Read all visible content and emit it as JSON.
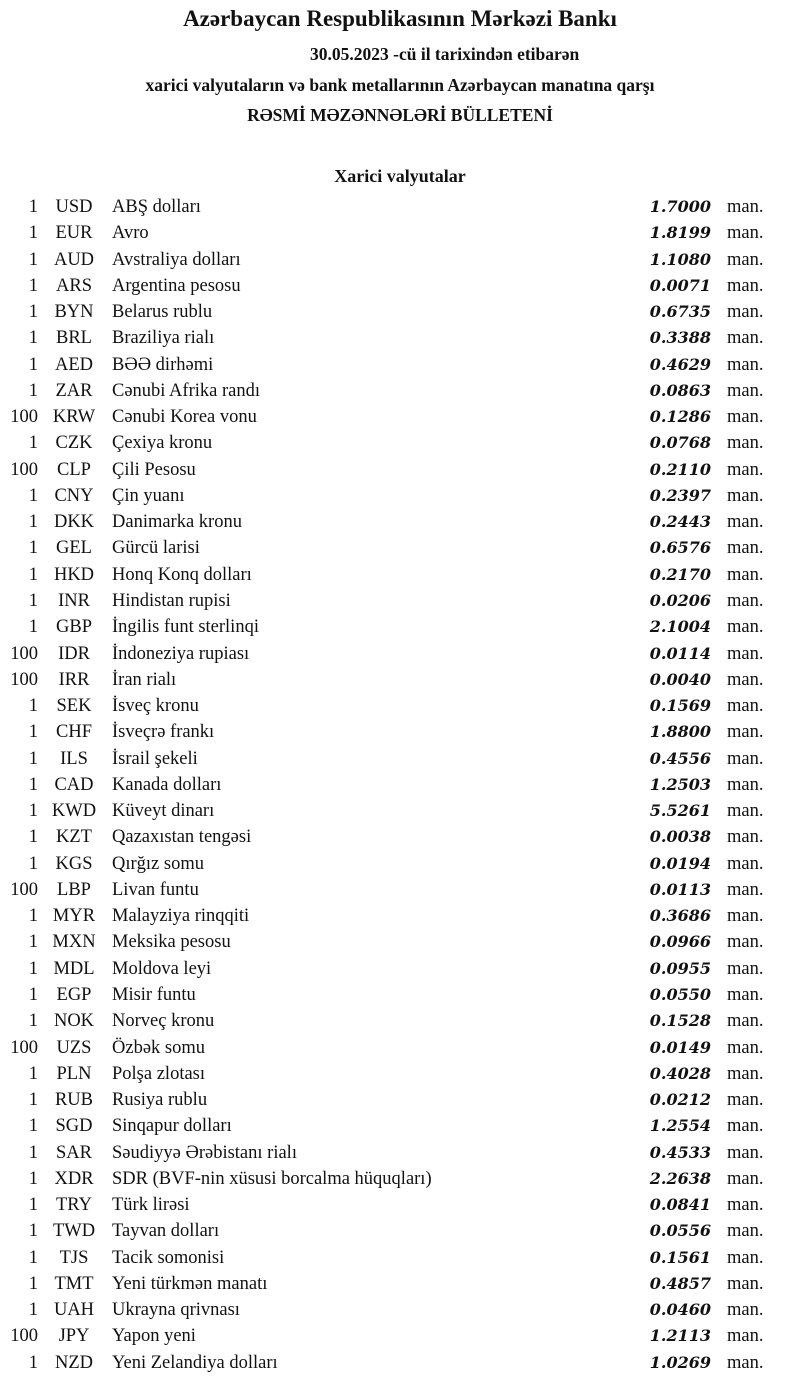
{
  "header": {
    "bank": "Azərbaycan Respublikasının Mərkəzi Bankı",
    "date_line": "30.05.2023 -cü il tarixindən etibarən",
    "subtitle": "xarici valyutaların və bank metallarının Azərbaycan manatına qarşı",
    "title": "RƏSMİ MƏZƏNNƏLƏRİ BÜLLETENİ",
    "section": "Xarici valyutalar"
  },
  "unit": "man.",
  "rates": [
    {
      "nominal": "1",
      "code": "USD",
      "name": "ABŞ dolları",
      "rate": "1.7000"
    },
    {
      "nominal": "1",
      "code": "EUR",
      "name": "Avro",
      "rate": "1.8199"
    },
    {
      "nominal": "1",
      "code": "AUD",
      "name": "Avstraliya dolları",
      "rate": "1.1080"
    },
    {
      "nominal": "1",
      "code": "ARS",
      "name": "Argentina pesosu",
      "rate": "0.0071"
    },
    {
      "nominal": "1",
      "code": "BYN",
      "name": "Belarus rublu",
      "rate": "0.6735"
    },
    {
      "nominal": "1",
      "code": "BRL",
      "name": "Braziliya rialı",
      "rate": "0.3388"
    },
    {
      "nominal": "1",
      "code": "AED",
      "name": "BƏƏ dirhəmi",
      "rate": "0.4629"
    },
    {
      "nominal": "1",
      "code": "ZAR",
      "name": "Cənubi Afrika randı",
      "rate": "0.0863"
    },
    {
      "nominal": "100",
      "code": "KRW",
      "name": "Cənubi Korea vonu",
      "rate": "0.1286"
    },
    {
      "nominal": "1",
      "code": "CZK",
      "name": "Çexiya kronu",
      "rate": "0.0768"
    },
    {
      "nominal": "100",
      "code": "CLP",
      "name": "Çili Pesosu",
      "rate": "0.2110"
    },
    {
      "nominal": "1",
      "code": "CNY",
      "name": "Çin yuanı",
      "rate": "0.2397"
    },
    {
      "nominal": "1",
      "code": "DKK",
      "name": "Danimarka kronu",
      "rate": "0.2443"
    },
    {
      "nominal": "1",
      "code": "GEL",
      "name": "Gürcü larisi",
      "rate": "0.6576"
    },
    {
      "nominal": "1",
      "code": "HKD",
      "name": "Honq Konq dolları",
      "rate": "0.2170"
    },
    {
      "nominal": "1",
      "code": "INR",
      "name": "Hindistan rupisi",
      "rate": "0.0206"
    },
    {
      "nominal": "1",
      "code": "GBP",
      "name": "İngilis funt sterlinqi",
      "rate": "2.1004"
    },
    {
      "nominal": "100",
      "code": "IDR",
      "name": "İndoneziya rupiası",
      "rate": "0.0114"
    },
    {
      "nominal": "100",
      "code": "IRR",
      "name": "İran rialı",
      "rate": "0.0040"
    },
    {
      "nominal": "1",
      "code": "SEK",
      "name": "İsveç kronu",
      "rate": "0.1569"
    },
    {
      "nominal": "1",
      "code": "CHF",
      "name": "İsveçrə frankı",
      "rate": "1.8800"
    },
    {
      "nominal": "1",
      "code": "ILS",
      "name": "İsrail şekeli",
      "rate": "0.4556"
    },
    {
      "nominal": "1",
      "code": "CAD",
      "name": "Kanada dolları",
      "rate": "1.2503"
    },
    {
      "nominal": "1",
      "code": "KWD",
      "name": "Küveyt dinarı",
      "rate": "5.5261"
    },
    {
      "nominal": "1",
      "code": "KZT",
      "name": "Qazaxıstan tengəsi",
      "rate": "0.0038"
    },
    {
      "nominal": "1",
      "code": "KGS",
      "name": "Qırğız somu",
      "rate": "0.0194"
    },
    {
      "nominal": "100",
      "code": "LBP",
      "name": "Livan funtu",
      "rate": "0.0113"
    },
    {
      "nominal": "1",
      "code": "MYR",
      "name": "Malayziya rinqqiti",
      "rate": "0.3686"
    },
    {
      "nominal": "1",
      "code": "MXN",
      "name": "Meksika pesosu",
      "rate": "0.0966"
    },
    {
      "nominal": "1",
      "code": "MDL",
      "name": "Moldova leyi",
      "rate": "0.0955"
    },
    {
      "nominal": "1",
      "code": "EGP",
      "name": "Misir funtu",
      "rate": "0.0550"
    },
    {
      "nominal": "1",
      "code": "NOK",
      "name": "Norveç kronu",
      "rate": "0.1528"
    },
    {
      "nominal": "100",
      "code": "UZS",
      "name": "Özbək somu",
      "rate": "0.0149"
    },
    {
      "nominal": "1",
      "code": "PLN",
      "name": "Polşa zlotası",
      "rate": "0.4028"
    },
    {
      "nominal": "1",
      "code": "RUB",
      "name": "Rusiya rublu",
      "rate": "0.0212"
    },
    {
      "nominal": "1",
      "code": "SGD",
      "name": "Sinqapur dolları",
      "rate": "1.2554"
    },
    {
      "nominal": "1",
      "code": "SAR",
      "name": "Səudiyyə Ərəbistanı rialı",
      "rate": "0.4533"
    },
    {
      "nominal": "1",
      "code": "XDR",
      "name": "SDR (BVF-nin xüsusi borcalma hüquqları)",
      "rate": "2.2638"
    },
    {
      "nominal": "1",
      "code": "TRY",
      "name": "Türk lirəsi",
      "rate": "0.0841"
    },
    {
      "nominal": "1",
      "code": "TWD",
      "name": "Tayvan dolları",
      "rate": "0.0556"
    },
    {
      "nominal": "1",
      "code": "TJS",
      "name": "Tacik somonisi",
      "rate": "0.1561"
    },
    {
      "nominal": "1",
      "code": "TMT",
      "name": "Yeni türkmən manatı",
      "rate": "0.4857"
    },
    {
      "nominal": "1",
      "code": "UAH",
      "name": "Ukrayna qrivnası",
      "rate": "0.0460"
    },
    {
      "nominal": "100",
      "code": "JPY",
      "name": "Yapon yeni",
      "rate": "1.2113"
    },
    {
      "nominal": "1",
      "code": "NZD",
      "name": "Yeni Zelandiya dolları",
      "rate": "1.0269"
    }
  ]
}
